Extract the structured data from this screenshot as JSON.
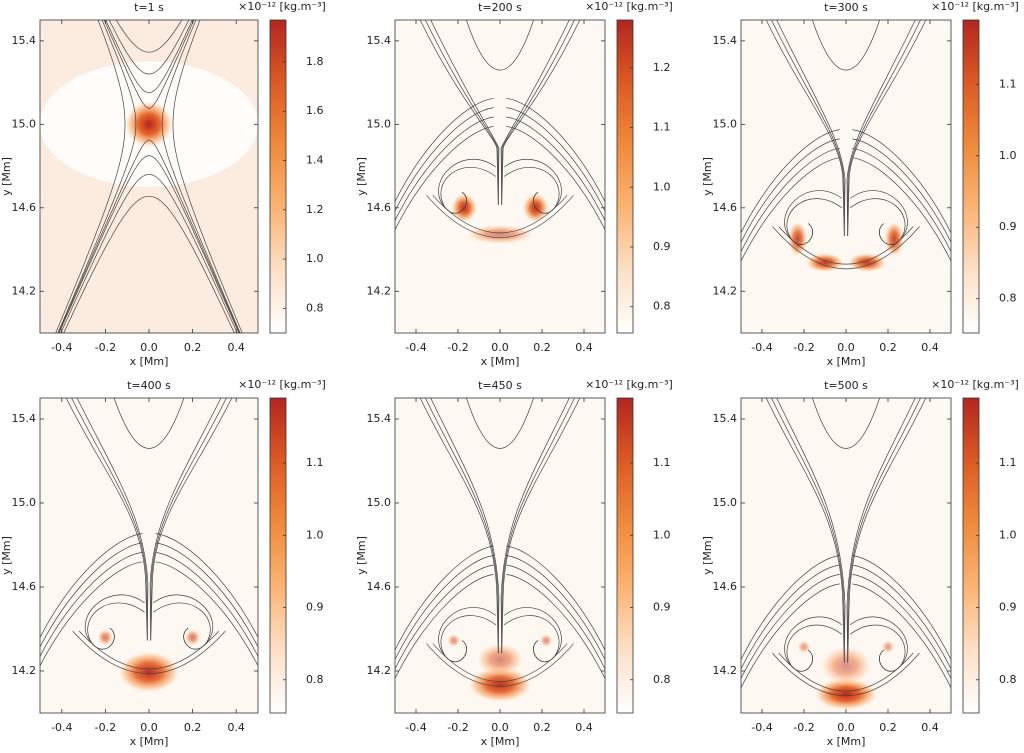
{
  "chart_data": [
    {
      "type": "heatmap",
      "title": "t=1 s",
      "xlabel": "x [Mm]",
      "ylabel": "y [Mm]",
      "colorbar_label": "×10⁻¹² [kg.m⁻³]",
      "xlim": [
        -0.5,
        0.5
      ],
      "xticks": [
        -0.4,
        -0.2,
        {
          "value": 0,
          "label": "0.0"
        },
        0.2,
        0.4
      ],
      "ylim": [
        14.0,
        15.5
      ],
      "yticks": [
        14.2,
        14.6,
        {
          "value": 15,
          "label": "15.0"
        },
        15.4
      ],
      "clim": [
        0.7,
        1.97
      ],
      "cticks": [
        0.8,
        {
          "value": 1,
          "label": "1.0"
        },
        1.2,
        1.4,
        1.6,
        1.8
      ],
      "colormap": [
        "#ffffff",
        "#fde0c5",
        "#fbb474",
        "#f08a3a",
        "#dc5a24",
        "#b3261e"
      ]
    },
    {
      "type": "heatmap",
      "title": "t=200 s",
      "xlabel": "x [Mm]",
      "ylabel": "y [Mm]",
      "colorbar_label": "×10⁻¹² [kg.m⁻³]",
      "xlim": [
        -0.5,
        0.5
      ],
      "xticks": [
        -0.4,
        -0.2,
        {
          "value": 0,
          "label": "0.0"
        },
        0.2,
        0.4
      ],
      "ylim": [
        14.0,
        15.5
      ],
      "yticks": [
        14.2,
        14.6,
        {
          "value": 15,
          "label": "15.0"
        },
        15.4
      ],
      "clim": [
        0.756,
        1.28
      ],
      "cticks": [
        0.8,
        0.9,
        {
          "value": 1,
          "label": "1.0"
        },
        1.1,
        1.2
      ],
      "colormap": [
        "#ffffff",
        "#fde0c5",
        "#fbb474",
        "#f08a3a",
        "#dc5a24",
        "#b3261e"
      ]
    },
    {
      "type": "heatmap",
      "title": "t=300 s",
      "xlabel": "x [Mm]",
      "ylabel": "y [Mm]",
      "colorbar_label": "×10⁻¹² [kg.m⁻³]",
      "xlim": [
        -0.5,
        0.5
      ],
      "xticks": [
        -0.4,
        -0.2,
        {
          "value": 0,
          "label": "0.0"
        },
        0.2,
        0.4
      ],
      "ylim": [
        14.0,
        15.5
      ],
      "yticks": [
        14.2,
        14.6,
        {
          "value": 15,
          "label": "15.0"
        },
        15.4
      ],
      "clim": [
        0.752,
        1.19
      ],
      "cticks": [
        0.8,
        0.9,
        {
          "value": 1,
          "label": "1.0"
        },
        1.1
      ],
      "colormap": [
        "#ffffff",
        "#fde0c5",
        "#fbb474",
        "#f08a3a",
        "#dc5a24",
        "#b3261e"
      ]
    },
    {
      "type": "heatmap",
      "title": "t=400 s",
      "xlabel": "x [Mm]",
      "ylabel": "y [Mm]",
      "colorbar_label": "×10⁻¹² [kg.m⁻³]",
      "xlim": [
        -0.5,
        0.5
      ],
      "xticks": [
        -0.4,
        -0.2,
        {
          "value": 0,
          "label": "0.0"
        },
        0.2,
        0.4
      ],
      "ylim": [
        14.0,
        15.5
      ],
      "yticks": [
        14.2,
        14.6,
        {
          "value": 15,
          "label": "15.0"
        },
        15.4
      ],
      "clim": [
        0.754,
        1.19
      ],
      "cticks": [
        0.8,
        0.9,
        {
          "value": 1,
          "label": "1.0"
        },
        1.1
      ],
      "colormap": [
        "#ffffff",
        "#fde0c5",
        "#fbb474",
        "#f08a3a",
        "#dc5a24",
        "#b3261e"
      ]
    },
    {
      "type": "heatmap",
      "title": "t=450 s",
      "xlabel": "x [Mm]",
      "ylabel": "y [Mm]",
      "colorbar_label": "×10⁻¹² [kg.m⁻³]",
      "xlim": [
        -0.5,
        0.5
      ],
      "xticks": [
        -0.4,
        -0.2,
        {
          "value": 0,
          "label": "0.0"
        },
        0.2,
        0.4
      ],
      "ylim": [
        14.0,
        15.5
      ],
      "yticks": [
        14.2,
        14.6,
        {
          "value": 15,
          "label": "15.0"
        },
        15.4
      ],
      "clim": [
        0.754,
        1.19
      ],
      "cticks": [
        0.8,
        0.9,
        {
          "value": 1,
          "label": "1.0"
        },
        1.1
      ],
      "colormap": [
        "#ffffff",
        "#fde0c5",
        "#fbb474",
        "#f08a3a",
        "#dc5a24",
        "#b3261e"
      ]
    },
    {
      "type": "heatmap",
      "title": "t=500 s",
      "xlabel": "x [Mm]",
      "ylabel": "y [Mm]",
      "colorbar_label": "×10⁻¹² [kg.m⁻³]",
      "xlim": [
        -0.5,
        0.5
      ],
      "xticks": [
        -0.4,
        -0.2,
        {
          "value": 0,
          "label": "0.0"
        },
        0.2,
        0.4
      ],
      "ylim": [
        14.0,
        15.5
      ],
      "yticks": [
        14.2,
        14.6,
        {
          "value": 15,
          "label": "15.0"
        },
        15.4
      ],
      "clim": [
        0.754,
        1.19
      ],
      "cticks": [
        0.8,
        0.9,
        {
          "value": 1,
          "label": "1.0"
        },
        1.1
      ],
      "colormap": [
        "#ffffff",
        "#fde0c5",
        "#fbb474",
        "#f08a3a",
        "#dc5a24",
        "#b3261e"
      ]
    }
  ]
}
